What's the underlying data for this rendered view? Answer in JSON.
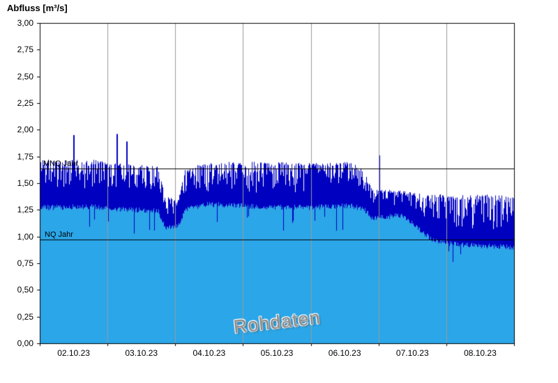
{
  "chart_data": {
    "type": "line",
    "title": "Abfluss [m³/s]",
    "watermark": "Rohdaten",
    "xlabel": "",
    "ylabel": "Abfluss [m³/s]",
    "legend_position": "none",
    "grid": "vertical-day-lines",
    "x_tick_labels": [
      "02.10.23",
      "03.10.23",
      "04.10.23",
      "05.10.23",
      "06.10.23",
      "07.10.23",
      "08.10.23"
    ],
    "y_tick_labels": [
      "0,00",
      "0,25",
      "0,50",
      "0,75",
      "1,00",
      "1,25",
      "1,50",
      "1,75",
      "2,00",
      "2,25",
      "2,50",
      "2,75",
      "3,00"
    ],
    "y_tick_step": 0.25,
    "ylim": [
      0,
      3
    ],
    "x_span_days": 7,
    "reference_lines": [
      {
        "label": "MNQ Jahr",
        "value": 1.64
      },
      {
        "label": "NQ Jahr",
        "value": 0.97
      }
    ],
    "series": [
      {
        "name": "Rohdaten",
        "style": "noisy-high-frequency-line-with-area-fill",
        "envelope_points": [
          [
            0.0,
            1.27,
            1.72
          ],
          [
            0.8,
            1.28,
            1.72
          ],
          [
            1.0,
            1.26,
            1.7
          ],
          [
            1.75,
            1.24,
            1.66
          ],
          [
            1.85,
            1.08,
            1.38
          ],
          [
            2.05,
            1.1,
            1.36
          ],
          [
            2.15,
            1.26,
            1.64
          ],
          [
            2.5,
            1.3,
            1.7
          ],
          [
            3.2,
            1.28,
            1.7
          ],
          [
            4.0,
            1.27,
            1.69
          ],
          [
            4.6,
            1.29,
            1.7
          ],
          [
            4.8,
            1.25,
            1.62
          ],
          [
            4.9,
            1.17,
            1.45
          ],
          [
            5.35,
            1.2,
            1.43
          ],
          [
            5.55,
            1.1,
            1.41
          ],
          [
            5.8,
            0.96,
            1.4
          ],
          [
            6.1,
            0.93,
            1.39
          ],
          [
            6.5,
            0.91,
            1.4
          ],
          [
            7.0,
            0.9,
            1.38
          ]
        ],
        "spikes": [
          [
            0.49,
            1.95
          ],
          [
            1.13,
            1.96
          ],
          [
            1.28,
            1.89
          ],
          [
            5.0,
            1.76
          ]
        ]
      }
    ],
    "colors": {
      "area_fill": "#2BA6E8",
      "line": "#0000C0",
      "grid": "#9A9A9A",
      "axis": "#000000",
      "reference_line": "#000000",
      "watermark": "#8F8F8F",
      "background": "#FFFFFF"
    },
    "seed": 20231002
  }
}
